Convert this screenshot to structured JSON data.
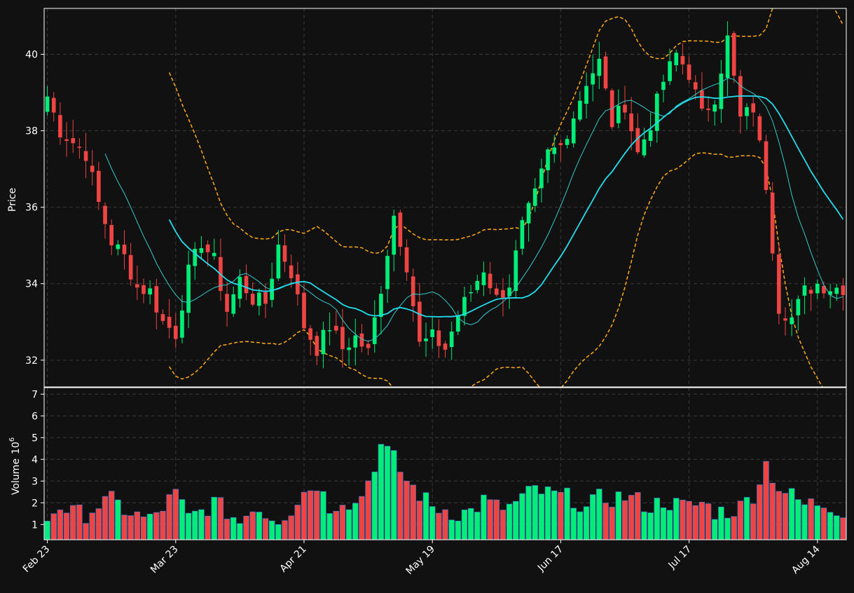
{
  "chart_data": {
    "type": "candlestick",
    "price_panel": {
      "ylabel": "Price",
      "ylim": [
        31.3,
        41.2
      ],
      "yticks": [
        32,
        34,
        36,
        38,
        40
      ],
      "grid": true
    },
    "volume_panel": {
      "ylabel": "Volume",
      "ylabel_exponent": "6",
      "unit_multiplier": 1000000,
      "ylim": [
        0.3,
        7.3
      ],
      "yticks": [
        1,
        2,
        3,
        4,
        5,
        6,
        7
      ],
      "grid": true
    },
    "x_ticks": [
      {
        "index": 0,
        "label": "Feb 23"
      },
      {
        "index": 20,
        "label": "Mar 23"
      },
      {
        "index": 40,
        "label": "Apr 21"
      },
      {
        "index": 60,
        "label": "May 19"
      },
      {
        "index": 80,
        "label": "Jun 17"
      },
      {
        "index": 100,
        "label": "Jul 17"
      },
      {
        "index": 120,
        "label": "Aug 14"
      }
    ],
    "colors": {
      "up": "#00ee77",
      "down": "#ee4444",
      "ma_fast": "#33cccc",
      "ma_slow": "#22ddee",
      "bands": "#ffaa11",
      "background": "#111111",
      "grid": "#3a3a3a",
      "text": "#ffffff"
    },
    "series": [
      {
        "key": "ohlc",
        "name": "Price"
      },
      {
        "key": "ma_fast",
        "window": 10
      },
      {
        "key": "ma_slow",
        "window": 20
      },
      {
        "key": "bands",
        "window": 20
      }
    ],
    "anchors": {
      "close": [
        [
          0,
          38.9
        ],
        [
          2,
          38.0
        ],
        [
          4,
          37.7
        ],
        [
          6,
          37.4
        ],
        [
          8,
          36.1
        ],
        [
          10,
          35.1
        ],
        [
          12,
          34.7
        ],
        [
          14,
          33.9
        ],
        [
          16,
          33.8
        ],
        [
          18,
          33.0
        ],
        [
          20,
          32.7
        ],
        [
          22,
          34.3
        ],
        [
          24,
          35.1
        ],
        [
          26,
          34.6
        ],
        [
          28,
          33.3
        ],
        [
          30,
          34.1
        ],
        [
          32,
          33.6
        ],
        [
          34,
          33.5
        ],
        [
          36,
          35.0
        ],
        [
          38,
          34.3
        ],
        [
          40,
          32.9
        ],
        [
          42,
          32.3
        ],
        [
          44,
          32.9
        ],
        [
          46,
          32.3
        ],
        [
          48,
          32.6
        ],
        [
          50,
          32.2
        ],
        [
          52,
          33.9
        ],
        [
          54,
          35.8
        ],
        [
          56,
          34.5
        ],
        [
          58,
          32.4
        ],
        [
          60,
          32.6
        ],
        [
          62,
          32.3
        ],
        [
          64,
          33.2
        ],
        [
          66,
          33.8
        ],
        [
          68,
          34.4
        ],
        [
          70,
          33.6
        ],
        [
          72,
          34.0
        ],
        [
          74,
          35.5
        ],
        [
          76,
          36.3
        ],
        [
          78,
          37.4
        ],
        [
          80,
          37.6
        ],
        [
          82,
          38.4
        ],
        [
          84,
          39.3
        ],
        [
          86,
          39.8
        ],
        [
          88,
          38.2
        ],
        [
          90,
          38.7
        ],
        [
          92,
          37.4
        ],
        [
          94,
          38.2
        ],
        [
          96,
          39.3
        ],
        [
          98,
          40.0
        ],
        [
          100,
          39.5
        ],
        [
          102,
          38.4
        ],
        [
          104,
          38.9
        ],
        [
          106,
          40.4
        ],
        [
          108,
          38.3
        ],
        [
          110,
          38.6
        ],
        [
          112,
          36.6
        ],
        [
          114,
          33.4
        ],
        [
          116,
          33.1
        ],
        [
          118,
          33.8
        ],
        [
          120,
          34.0
        ],
        [
          122,
          33.9
        ],
        [
          124,
          33.9
        ]
      ],
      "volume": [
        [
          0,
          1.3
        ],
        [
          2,
          1.9
        ],
        [
          4,
          1.5
        ],
        [
          6,
          1.5
        ],
        [
          8,
          1.9
        ],
        [
          10,
          2.1
        ],
        [
          12,
          1.7
        ],
        [
          14,
          1.4
        ],
        [
          16,
          1.2
        ],
        [
          18,
          1.8
        ],
        [
          20,
          2.4
        ],
        [
          22,
          1.3
        ],
        [
          24,
          1.6
        ],
        [
          26,
          2.0
        ],
        [
          28,
          1.6
        ],
        [
          30,
          1.1
        ],
        [
          32,
          1.9
        ],
        [
          34,
          1.5
        ],
        [
          36,
          1.3
        ],
        [
          38,
          1.7
        ],
        [
          40,
          2.5
        ],
        [
          42,
          2.9
        ],
        [
          44,
          1.8
        ],
        [
          46,
          2.2
        ],
        [
          48,
          1.9
        ],
        [
          50,
          3.0
        ],
        [
          52,
          4.6
        ],
        [
          54,
          4.0
        ],
        [
          56,
          3.0
        ],
        [
          58,
          2.4
        ],
        [
          60,
          1.8
        ],
        [
          62,
          1.7
        ],
        [
          64,
          1.5
        ],
        [
          66,
          1.6
        ],
        [
          68,
          2.1
        ],
        [
          70,
          1.8
        ],
        [
          72,
          1.8
        ],
        [
          74,
          2.2
        ],
        [
          76,
          2.6
        ],
        [
          78,
          2.4
        ],
        [
          80,
          2.3
        ],
        [
          82,
          2.2
        ],
        [
          84,
          1.7
        ],
        [
          86,
          2.2
        ],
        [
          88,
          2.2
        ],
        [
          90,
          2.3
        ],
        [
          92,
          2.1
        ],
        [
          94,
          1.8
        ],
        [
          96,
          2.1
        ],
        [
          98,
          1.9
        ],
        [
          100,
          1.8
        ],
        [
          102,
          2.0
        ],
        [
          104,
          1.6
        ],
        [
          106,
          1.6
        ],
        [
          108,
          1.8
        ],
        [
          110,
          2.4
        ],
        [
          112,
          3.8
        ],
        [
          114,
          2.7
        ],
        [
          116,
          2.3
        ],
        [
          118,
          1.9
        ],
        [
          120,
          2.0
        ],
        [
          122,
          1.9
        ],
        [
          124,
          1.6
        ]
      ]
    },
    "count": 125
  }
}
